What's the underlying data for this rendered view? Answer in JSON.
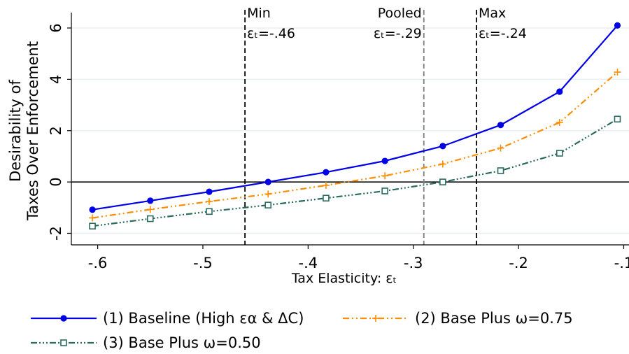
{
  "chart_data": {
    "type": "line",
    "title": "",
    "xlabel": "Tax Elasticity: εₜ",
    "ylabel_lines": [
      "Desirability of",
      "Taxes Over Enforcement"
    ],
    "xlim": [
      -0.625,
      -0.095
    ],
    "ylim": [
      -2.45,
      6.6
    ],
    "x_ticks": [
      -0.6,
      -0.5,
      -0.4,
      -0.3,
      -0.2,
      -0.1
    ],
    "x_tick_labels": [
      "-.6",
      "-.5",
      "-.4",
      "-.3",
      "-.2",
      "-.1"
    ],
    "y_ticks": [
      -2,
      0,
      2,
      4,
      6
    ],
    "y_tick_labels": [
      "-2",
      "0",
      "2",
      "4",
      "6"
    ],
    "grid": true,
    "zero_line": true,
    "legend_position": "bottom",
    "vlines": [
      {
        "x": -0.46,
        "label_top": "Min",
        "label_bottom": "εₜ=-.46",
        "color": "#000000"
      },
      {
        "x": -0.29,
        "label_top": "Pooled",
        "label_bottom": "εₜ=-.29",
        "color": "#7f7f7f"
      },
      {
        "x": -0.24,
        "label_top": "Max",
        "label_bottom": "εₜ=-.24",
        "color": "#000000"
      }
    ],
    "x": [
      -0.605,
      -0.55,
      -0.494,
      -0.438,
      -0.383,
      -0.327,
      -0.272,
      -0.217,
      -0.161,
      -0.106
    ],
    "series": [
      {
        "name": "(1) Baseline (High εα & ΔC)",
        "color": "#0000e6",
        "marker": "circle",
        "dash": "",
        "values": [
          -1.08,
          -0.73,
          -0.38,
          0.0,
          0.38,
          0.82,
          1.4,
          2.22,
          3.52,
          6.1
        ]
      },
      {
        "name": "(2) Base Plus ω=0.75",
        "color": "#ff8c00",
        "marker": "plus",
        "dash": "9,4,2,4,2,4",
        "values": [
          -1.4,
          -1.07,
          -0.76,
          -0.47,
          -0.13,
          0.24,
          0.7,
          1.32,
          2.32,
          4.28
        ]
      },
      {
        "name": "(3) Base Plus ω=0.50",
        "color": "#2a6b5e",
        "marker": "square",
        "dash": "9,3,2,3,2,3,2,3",
        "values": [
          -1.72,
          -1.43,
          -1.15,
          -0.9,
          -0.63,
          -0.35,
          0.0,
          0.44,
          1.12,
          2.45
        ]
      }
    ]
  }
}
